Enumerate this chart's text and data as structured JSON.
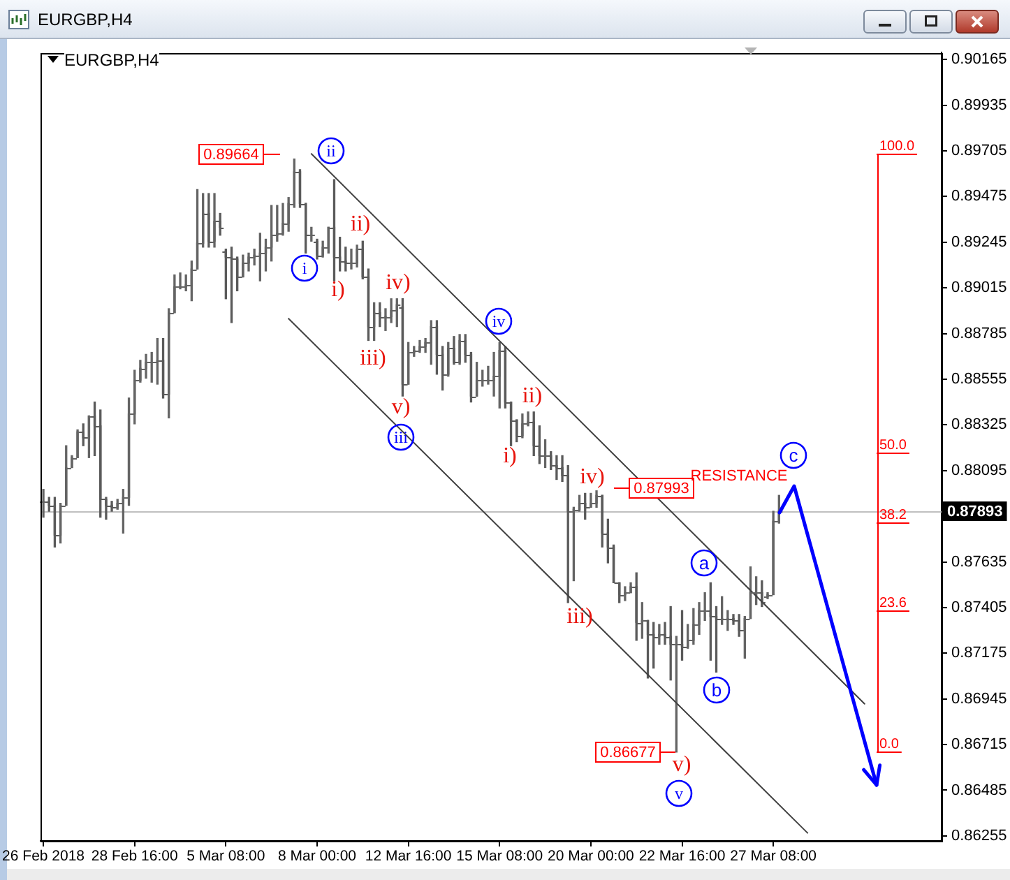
{
  "chart_data": {
    "type": "candlestick",
    "title": "EURGBP,H4",
    "subtitle": "EURGBP,H4",
    "categories": [
      "26 Feb 2018",
      null,
      null,
      null,
      null,
      null,
      null,
      null,
      null,
      null,
      null,
      null,
      null,
      null,
      null,
      null,
      "28 Feb 16:00",
      null,
      null,
      null,
      null,
      null,
      null,
      null,
      null,
      null,
      null,
      null,
      null,
      null,
      null,
      null,
      "5 Mar 08:00",
      null,
      null,
      null,
      null,
      null,
      null,
      null,
      null,
      null,
      null,
      null,
      null,
      null,
      null,
      null,
      "8 Mar 00:00",
      null,
      null,
      null,
      null,
      null,
      null,
      null,
      null,
      null,
      null,
      null,
      null,
      null,
      null,
      null,
      "12 Mar 16:00",
      null,
      null,
      null,
      null,
      null,
      null,
      null,
      null,
      null,
      null,
      null,
      null,
      null,
      null,
      null,
      "15 Mar 08:00",
      null,
      null,
      null,
      null,
      null,
      null,
      null,
      null,
      null,
      null,
      null,
      null,
      null,
      null,
      null,
      "20 Mar 00:00",
      null,
      null,
      null,
      null,
      null,
      null,
      null,
      null,
      null,
      null,
      null,
      null,
      null,
      null,
      null,
      "22 Mar 16:00",
      null,
      null,
      null,
      null,
      null,
      null,
      null,
      null,
      null,
      null,
      null,
      null,
      null,
      null,
      null,
      "27 Mar 08:00",
      null,
      null,
      null,
      null,
      null,
      null,
      null,
      null,
      null,
      null,
      null,
      null,
      null,
      null,
      null,
      null,
      null,
      null,
      null,
      null,
      null,
      null,
      null,
      null,
      null,
      null,
      null,
      null,
      null
    ],
    "ohlc": [
      [
        0.8794,
        0.88,
        0.8786,
        0.8794
      ],
      [
        0.8794,
        0.8796,
        0.8789,
        0.8792
      ],
      [
        0.8792,
        0.8796,
        0.8771,
        0.8777
      ],
      [
        0.8777,
        0.8793,
        0.8773,
        0.8792
      ],
      [
        0.8792,
        0.8822,
        0.8792,
        0.8811
      ],
      [
        0.8811,
        0.8817,
        0.8811,
        0.8816
      ],
      [
        0.8816,
        0.883,
        0.8816,
        0.8829
      ],
      [
        0.8829,
        0.8833,
        0.8822,
        0.8826
      ],
      [
        0.8826,
        0.8837,
        0.8816,
        0.8837
      ],
      [
        0.8837,
        0.8844,
        0.8817,
        0.8832
      ],
      [
        0.8832,
        0.884,
        0.8786,
        0.8795
      ],
      [
        0.8795,
        0.8796,
        0.8785,
        0.8792
      ],
      [
        0.8792,
        0.8794,
        0.8789,
        0.8791
      ],
      [
        0.8791,
        0.8795,
        0.879,
        0.8793
      ],
      [
        0.8793,
        0.88,
        0.8778,
        0.8796
      ],
      [
        0.8796,
        0.8846,
        0.8792,
        0.8838
      ],
      [
        0.8838,
        0.886,
        0.8833,
        0.8855
      ],
      [
        0.8855,
        0.8865,
        0.8854,
        0.8861
      ],
      [
        0.8861,
        0.8868,
        0.8856,
        0.8864
      ],
      [
        0.8864,
        0.8869,
        0.8854,
        0.8864
      ],
      [
        0.8864,
        0.8876,
        0.8853,
        0.8865
      ],
      [
        0.8865,
        0.8876,
        0.8846,
        0.8848
      ],
      [
        0.8848,
        0.8891,
        0.8836,
        0.8889
      ],
      [
        0.8889,
        0.8908,
        0.8889,
        0.8902
      ],
      [
        0.8902,
        0.8909,
        0.8901,
        0.8902
      ],
      [
        0.8902,
        0.8908,
        0.89,
        0.8903
      ],
      [
        0.8903,
        0.8915,
        0.8895,
        0.8911
      ],
      [
        0.8911,
        0.8951,
        0.8911,
        0.8924
      ],
      [
        0.8924,
        0.8949,
        0.8922,
        0.8939
      ],
      [
        0.8939,
        0.8949,
        0.8922,
        0.8925
      ],
      [
        0.8925,
        0.8949,
        0.8922,
        0.8935
      ],
      [
        0.8935,
        0.8939,
        0.8928,
        0.8932
      ],
      [
        0.892,
        0.8921,
        0.8896,
        0.8917
      ],
      [
        0.8917,
        0.8922,
        0.8884,
        0.8916
      ],
      [
        0.8916,
        0.8917,
        0.89,
        0.8907
      ],
      [
        0.8907,
        0.8918,
        0.8907,
        0.8914
      ],
      [
        0.8914,
        0.8919,
        0.891,
        0.8917
      ],
      [
        0.8917,
        0.8921,
        0.8913,
        0.8918
      ],
      [
        0.8918,
        0.8929,
        0.8905,
        0.8919
      ],
      [
        0.8919,
        0.8926,
        0.891,
        0.8922
      ],
      [
        0.8922,
        0.8943,
        0.8915,
        0.8928
      ],
      [
        0.8928,
        0.8943,
        0.8925,
        0.8929
      ],
      [
        0.8929,
        0.8944,
        0.8928,
        0.8934
      ],
      [
        0.8934,
        0.8947,
        0.893,
        0.8944
      ],
      [
        0.8944,
        0.89664,
        0.8942,
        0.896
      ],
      [
        0.896,
        0.8961,
        0.8942,
        0.8944
      ],
      [
        0.8944,
        0.8944,
        0.8919,
        0.8928
      ],
      [
        0.8928,
        0.8932,
        0.8925,
        0.8928
      ],
      [
        0.8925,
        0.8926,
        0.8916,
        0.8918
      ],
      [
        0.8918,
        0.8925,
        0.8917,
        0.8922
      ],
      [
        0.8922,
        0.8932,
        0.8919,
        0.8932
      ],
      [
        0.8932,
        0.8956,
        0.8905,
        0.8917
      ],
      [
        0.8917,
        0.8927,
        0.891,
        0.8915
      ],
      [
        0.8915,
        0.8922,
        0.891,
        0.8914
      ],
      [
        0.8914,
        0.8921,
        0.8911,
        0.8914
      ],
      [
        0.8914,
        0.8923,
        0.8912,
        0.8921
      ],
      [
        0.8921,
        0.8925,
        0.8906,
        0.8907
      ],
      [
        0.8907,
        0.8911,
        0.8875,
        0.8882
      ],
      [
        0.8882,
        0.8894,
        0.8875,
        0.8889
      ],
      [
        0.8889,
        0.8894,
        0.8882,
        0.8887
      ],
      [
        0.8887,
        0.8891,
        0.888,
        0.8887
      ],
      [
        0.8887,
        0.8896,
        0.8884,
        0.889
      ],
      [
        0.889,
        0.8896,
        0.8882,
        0.8893
      ],
      [
        0.8892,
        0.8896,
        0.8847,
        0.8853
      ],
      [
        0.8853,
        0.8874,
        0.8853,
        0.8869
      ],
      [
        0.8869,
        0.8872,
        0.8867,
        0.887
      ],
      [
        0.887,
        0.8875,
        0.8869,
        0.8872
      ],
      [
        0.8872,
        0.8876,
        0.8869,
        0.8874
      ],
      [
        0.8874,
        0.8885,
        0.8863,
        0.8882
      ],
      [
        0.8882,
        0.8885,
        0.8858,
        0.8868
      ],
      [
        0.8868,
        0.8872,
        0.885,
        0.8858
      ],
      [
        0.8858,
        0.8874,
        0.8857,
        0.8871
      ],
      [
        0.8871,
        0.8877,
        0.8863,
        0.8864
      ],
      [
        0.8864,
        0.8878,
        0.8863,
        0.8875
      ],
      [
        0.8875,
        0.8878,
        0.8864,
        0.8868
      ],
      [
        0.8868,
        0.8869,
        0.8844,
        0.8847
      ],
      [
        0.8847,
        0.8864,
        0.8847,
        0.8855
      ],
      [
        0.8855,
        0.886,
        0.8852,
        0.8855
      ],
      [
        0.8855,
        0.8862,
        0.8853,
        0.8855
      ],
      [
        0.8855,
        0.8869,
        0.8847,
        0.8857
      ],
      [
        0.8857,
        0.8874,
        0.8841,
        0.887
      ],
      [
        0.887,
        0.8872,
        0.8841,
        0.8844
      ],
      [
        0.8844,
        0.8844,
        0.8822,
        0.8835
      ],
      [
        0.8835,
        0.8835,
        0.8824,
        0.8827
      ],
      [
        0.8827,
        0.8838,
        0.8826,
        0.8833
      ],
      [
        0.8833,
        0.8839,
        0.8832,
        0.8834
      ],
      [
        0.8834,
        0.8839,
        0.8817,
        0.8822
      ],
      [
        0.8822,
        0.8832,
        0.8813,
        0.8817
      ],
      [
        0.8817,
        0.8825,
        0.8811,
        0.8817
      ],
      [
        0.8817,
        0.8819,
        0.881,
        0.8812
      ],
      [
        0.8812,
        0.8817,
        0.8805,
        0.8811
      ],
      [
        0.8811,
        0.8817,
        0.8804,
        0.8807
      ],
      [
        0.8807,
        0.8812,
        0.8743,
        0.8789
      ],
      [
        0.8789,
        0.8791,
        0.8754,
        0.879
      ],
      [
        0.879,
        0.8797,
        0.8789,
        0.8793
      ],
      [
        0.8793,
        0.8798,
        0.8785,
        0.8791
      ],
      [
        0.8791,
        0.8798,
        0.8791,
        0.8793
      ],
      [
        0.8793,
        0.87993,
        0.8791,
        0.8797
      ],
      [
        0.8797,
        0.8797,
        0.8771,
        0.8778
      ],
      [
        0.8778,
        0.8785,
        0.8763,
        0.8771
      ],
      [
        0.8771,
        0.8772,
        0.8753,
        0.8753
      ],
      [
        0.8753,
        0.8753,
        0.8743,
        0.8747
      ],
      [
        0.8747,
        0.8751,
        0.8744,
        0.8748
      ],
      [
        0.8748,
        0.8753,
        0.8748,
        0.8751
      ],
      [
        0.8751,
        0.8758,
        0.8724,
        0.8733
      ],
      [
        0.8733,
        0.8743,
        0.8725,
        0.8734
      ],
      [
        0.8734,
        0.8734,
        0.8705,
        0.8727
      ],
      [
        0.8727,
        0.8733,
        0.871,
        0.8726
      ],
      [
        0.8726,
        0.8732,
        0.8722,
        0.8727
      ],
      [
        0.8727,
        0.8733,
        0.8722,
        0.8726
      ],
      [
        0.8726,
        0.8741,
        0.8704,
        0.8722
      ],
      [
        0.8722,
        0.8726,
        0.86677,
        0.8722
      ],
      [
        0.8722,
        0.8739,
        0.8714,
        0.8721
      ],
      [
        0.8721,
        0.8732,
        0.872,
        0.8724
      ],
      [
        0.8724,
        0.874,
        0.8722,
        0.8732
      ],
      [
        0.8732,
        0.8743,
        0.8727,
        0.8739
      ],
      [
        0.8739,
        0.8748,
        0.8734,
        0.8739
      ],
      [
        0.8739,
        0.8753,
        0.8714,
        0.8736
      ],
      [
        0.8736,
        0.8741,
        0.8708,
        0.8735
      ],
      [
        0.8735,
        0.8746,
        0.8732,
        0.8735
      ],
      [
        0.8735,
        0.8739,
        0.8729,
        0.8735
      ],
      [
        0.8735,
        0.8737,
        0.8732,
        0.8734
      ],
      [
        0.8734,
        0.8737,
        0.8726,
        0.8729
      ],
      [
        0.8729,
        0.8736,
        0.8715,
        0.8735
      ],
      [
        0.8735,
        0.8761,
        0.8735,
        0.8748
      ],
      [
        0.8748,
        0.8756,
        0.8742,
        0.8748
      ],
      [
        0.8748,
        0.8754,
        0.8741,
        0.8743
      ],
      [
        0.8746,
        0.8748,
        0.8745,
        0.8747
      ],
      [
        0.8747,
        0.8789,
        0.8747,
        0.8784
      ],
      [
        0.8784,
        0.8797,
        0.8783,
        0.87893
      ],
      null,
      null,
      null,
      null,
      null,
      null,
      null,
      null,
      null,
      null,
      null,
      null,
      null,
      null,
      null,
      null,
      null,
      null,
      null,
      null,
      null,
      null,
      null,
      null,
      null,
      null,
      null,
      null
    ],
    "colors": [
      "#646464",
      "#5a5a5a",
      "#5a5a5a",
      "#646464",
      "#646464",
      "#646464",
      "#646464",
      "#5a5a5a",
      "#646464",
      "#5a5a5a",
      "#5a5a5a",
      "#5a5a5a",
      "#5a5a5a",
      "#646464",
      "#646464",
      "#646464",
      "#646464",
      "#646464",
      "#646464",
      "#646464",
      "#646464",
      "#5a5a5a",
      "#646464",
      "#646464",
      "#646464",
      "#646464",
      "#646464",
      "#646464",
      "#646464",
      "#5a5a5a",
      "#646464",
      "#5a5a5a",
      "#5a5a5a",
      "#5a5a5a",
      "#5a5a5a",
      "#646464",
      "#646464",
      "#646464",
      "#646464",
      "#646464",
      "#646464",
      "#646464",
      "#646464",
      "#646464",
      "#646464",
      "#5a5a5a",
      "#5a5a5a",
      "#646464",
      "#5a5a5a",
      "#646464",
      "#646464",
      "#5a5a5a",
      "#5a5a5a",
      "#5a5a5a",
      "#646464",
      "#646464",
      "#5a5a5a",
      "#5a5a5a",
      "#646464",
      "#5a5a5a",
      "#646464",
      "#646464",
      "#646464",
      "#5a5a5a",
      "#646464",
      "#646464",
      "#646464",
      "#646464",
      "#646464",
      "#5a5a5a",
      "#5a5a5a",
      "#646464",
      "#5a5a5a",
      "#646464",
      "#5a5a5a",
      "#5a5a5a",
      "#646464",
      "#646464",
      "#646464",
      "#646464",
      "#646464",
      "#5a5a5a",
      "#5a5a5a",
      "#5a5a5a",
      "#646464",
      "#646464",
      "#5a5a5a",
      "#5a5a5a",
      "#646464",
      "#5a5a5a",
      "#5a5a5a",
      "#5a5a5a",
      "#5a5a5a",
      "#646464",
      "#646464",
      "#5a5a5a",
      "#646464",
      "#646464",
      "#5a5a5a",
      "#5a5a5a",
      "#5a5a5a",
      "#5a5a5a",
      "#646464",
      "#646464",
      "#5a5a5a",
      "#646464",
      "#5a5a5a",
      "#5a5a5a",
      "#646464",
      "#5a5a5a",
      "#5a5a5a",
      "#646464",
      "#5a5a5a",
      "#646464",
      "#646464",
      "#646464",
      "#646464",
      "#5a5a5a",
      "#5a5a5a",
      "#646464",
      "#646464",
      "#5a5a5a",
      "#5a5a5a",
      "#646464",
      "#646464",
      "#646464",
      "#5a5a5a",
      "#646464",
      "#646464",
      "#646464",
      null,
      null,
      null,
      null,
      null,
      null,
      null,
      null,
      null,
      null,
      null,
      null,
      null,
      null,
      null,
      null,
      null,
      null,
      null,
      null,
      null,
      null,
      null,
      null,
      null,
      null,
      null,
      null
    ],
    "series": [
      {
        "type": "line",
        "color": "#404040",
        "values": [
          null,
          null,
          null,
          null,
          null,
          null,
          null,
          null,
          null,
          null,
          null,
          null,
          null,
          null,
          null,
          null,
          null,
          null,
          null,
          null,
          null,
          null,
          null,
          null,
          null,
          null,
          null,
          null,
          null,
          null,
          null,
          null,
          null,
          null,
          null,
          null,
          null,
          null,
          null,
          null,
          null,
          null,
          null,
          null,
          null,
          null,
          null,
          0.8969,
          null,
          null,
          null,
          null,
          null,
          null,
          null,
          null,
          null,
          null,
          null,
          null,
          null,
          null,
          null,
          null,
          null,
          null,
          null,
          null,
          null,
          null,
          null,
          null,
          null,
          null,
          null,
          null,
          null,
          null,
          null,
          null,
          null,
          null,
          null,
          null,
          null,
          null,
          null,
          null,
          null,
          null,
          null,
          null,
          null,
          null,
          null,
          null,
          null,
          null,
          null,
          null,
          null,
          null,
          null,
          null,
          null,
          null,
          null,
          null,
          null,
          null,
          null,
          null,
          null,
          null,
          null,
          null,
          null,
          null,
          null,
          null,
          null,
          null,
          null,
          null,
          null,
          null,
          null,
          null,
          null,
          null,
          null,
          null,
          null,
          null,
          null,
          null,
          null,
          null,
          null,
          null,
          null,
          null,
          null,
          null,
          0.8692,
          null,
          null,
          null,
          null,
          null,
          null,
          null,
          null,
          null,
          null,
          null,
          null,
          null
        ]
      },
      {
        "type": "line",
        "color": "#404040",
        "values": [
          null,
          null,
          null,
          null,
          null,
          null,
          null,
          null,
          null,
          null,
          null,
          null,
          null,
          null,
          null,
          null,
          null,
          null,
          null,
          null,
          null,
          null,
          null,
          null,
          null,
          null,
          null,
          null,
          null,
          null,
          null,
          null,
          null,
          null,
          null,
          null,
          null,
          null,
          null,
          null,
          null,
          null,
          null,
          0.8886,
          null,
          null,
          null,
          null,
          null,
          null,
          null,
          null,
          null,
          null,
          null,
          null,
          null,
          null,
          null,
          null,
          null,
          null,
          null,
          null,
          null,
          null,
          null,
          null,
          null,
          null,
          null,
          null,
          null,
          null,
          null,
          null,
          null,
          null,
          null,
          null,
          null,
          null,
          null,
          null,
          null,
          null,
          null,
          null,
          null,
          null,
          null,
          null,
          null,
          null,
          null,
          null,
          null,
          null,
          null,
          null,
          null,
          null,
          null,
          null,
          null,
          null,
          null,
          null,
          null,
          null,
          null,
          null,
          null,
          null,
          null,
          null,
          null,
          null,
          null,
          null,
          null,
          null,
          null,
          null,
          null,
          null,
          null,
          null,
          null,
          null,
          null,
          null,
          null,
          null,
          0.8627,
          null,
          null,
          null,
          null,
          null,
          null,
          null,
          null,
          null,
          null,
          null,
          null,
          null,
          null,
          null,
          null,
          null,
          null,
          null,
          null,
          null,
          null,
          null
        ]
      }
    ],
    "ylim": [
      0.8623,
      0.902
    ],
    "yticks": [
      0.86255,
      0.86485,
      0.86715,
      0.86945,
      0.87175,
      0.87405,
      0.87635,
      {
        "value": 0.87865,
        "label": null
      },
      0.88095,
      0.88325,
      0.88555,
      0.88785,
      0.89015,
      0.89245,
      0.89475,
      0.89705,
      0.89935,
      0.90165
    ],
    "ref_lines": [
      {
        "axis": "y",
        "value": 0.87893,
        "label": "0.87893",
        "color": "#c0c0c0"
      }
    ],
    "annotations": [
      "0.89664",
      "0.87993",
      "0.86677",
      "ii",
      "i",
      "i)",
      "ii)",
      "iii)",
      "iv)",
      "v)",
      "iii",
      "iv",
      "i)",
      "ii)",
      "iii)",
      "iv)",
      "v)",
      "v",
      "a",
      "b",
      "c",
      "RESISTANCE",
      "100.0",
      "50.0",
      "38.2",
      "23.6",
      "0.0"
    ]
  }
}
